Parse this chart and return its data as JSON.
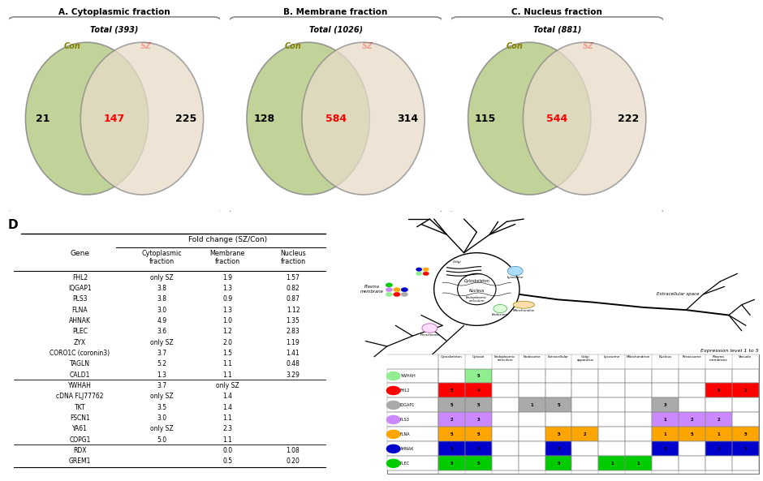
{
  "venn_A": {
    "title": "A. Cytoplasmic fraction",
    "total": "Total (393)",
    "left_label": "Con",
    "right_label": "SZ",
    "left_only": "21",
    "overlap": "147",
    "right_only": "225"
  },
  "venn_B": {
    "title": "B. Membrane fraction",
    "total": "Total (1026)",
    "left_label": "Con",
    "right_label": "SZ",
    "left_only": "128",
    "overlap": "584",
    "right_only": "314"
  },
  "venn_C": {
    "title": "C. Nucleus fraction",
    "total": "Total (881)",
    "left_label": "Con",
    "right_label": "SZ",
    "left_only": "115",
    "overlap": "544",
    "right_only": "222"
  },
  "table_genes": [
    {
      "gene": "FHL2",
      "cyto": "only SZ",
      "mem": "1.9",
      "nuc": "1.57"
    },
    {
      "gene": "IQGAP1",
      "cyto": "3.8",
      "mem": "1.3",
      "nuc": "0.82"
    },
    {
      "gene": "PLS3",
      "cyto": "3.8",
      "mem": "0.9",
      "nuc": "0.87"
    },
    {
      "gene": "FLNA",
      "cyto": "3.0",
      "mem": "1.3",
      "nuc": "1.12"
    },
    {
      "gene": "AHNAK",
      "cyto": "4.9",
      "mem": "1.0",
      "nuc": "1.35"
    },
    {
      "gene": "PLEC",
      "cyto": "3.6",
      "mem": "1.2",
      "nuc": "2.83"
    },
    {
      "gene": "ZYX",
      "cyto": "only SZ",
      "mem": "2.0",
      "nuc": "1.19"
    },
    {
      "gene": "CORO1C (coronin3)",
      "cyto": "3.7",
      "mem": "1.5",
      "nuc": "1.41"
    },
    {
      "gene": "TAGLN",
      "cyto": "5.2",
      "mem": "1.1",
      "nuc": "0.48"
    },
    {
      "gene": "CALD1",
      "cyto": "1.3",
      "mem": "1.1",
      "nuc": "3.29"
    },
    {
      "gene": "YWHAH",
      "cyto": "3.7",
      "mem": "only SZ",
      "nuc": ""
    },
    {
      "gene": "cDNA FLJ77762",
      "cyto": "only SZ",
      "mem": "1.4",
      "nuc": ""
    },
    {
      "gene": "TKT",
      "cyto": "3.5",
      "mem": "1.4",
      "nuc": ""
    },
    {
      "gene": "FSCN1",
      "cyto": "3.0",
      "mem": "1.1",
      "nuc": ""
    },
    {
      "gene": "YA61",
      "cyto": "only SZ",
      "mem": "2.3",
      "nuc": ""
    },
    {
      "gene": "COPG1",
      "cyto": "5.0",
      "mem": "1.1",
      "nuc": ""
    },
    {
      "gene": "RDX",
      "cyto": "",
      "mem": "0.0",
      "nuc": "1.08"
    },
    {
      "gene": "GREM1",
      "cyto": "",
      "mem": "0.5",
      "nuc": "0.20"
    }
  ],
  "expression_table": {
    "columns": [
      "Cytoskeleton",
      "Cytosol",
      "Endoplasmic\nreticulum",
      "Endosome",
      "Extracellular",
      "Golgi\napparatus",
      "Lysosome",
      "Mitochondrion",
      "Nucleus",
      "Peroxisome",
      "Plasma\nmembrane",
      "Vacuole"
    ],
    "rows": [
      {
        "gene": "YWHAH",
        "dot_color": "#90EE90",
        "vals": [
          "",
          "5",
          "",
          "",
          "",
          "",
          "",
          "",
          "",
          "",
          "",
          ""
        ]
      },
      {
        "gene": "FHL2",
        "dot_color": "#FF0000",
        "vals": [
          "5",
          "4",
          "",
          "",
          "",
          "",
          "",
          "",
          "",
          "",
          "5",
          "1"
        ]
      },
      {
        "gene": "IQGAP1",
        "dot_color": "#AAAAAA",
        "vals": [
          "5",
          "5",
          "",
          "1",
          "5",
          "",
          "",
          "",
          "3",
          "",
          "",
          ""
        ]
      },
      {
        "gene": "PLS3",
        "dot_color": "#CC88FF",
        "vals": [
          "2",
          "3",
          "",
          "",
          "",
          "",
          "",
          "",
          "1",
          "2",
          "2",
          ""
        ]
      },
      {
        "gene": "FLNA",
        "dot_color": "#FFA500",
        "vals": [
          "5",
          "5",
          "",
          "",
          "5",
          "2",
          "",
          "",
          "1",
          "5",
          "1",
          "5"
        ]
      },
      {
        "gene": "AHNAK",
        "dot_color": "#0000CD",
        "vals": [
          "5",
          "5",
          "",
          "",
          "5",
          "",
          "",
          "",
          "5",
          "",
          "3",
          "5"
        ]
      },
      {
        "gene": "PLEC",
        "dot_color": "#00CC00",
        "vals": [
          "5",
          "5",
          "",
          "",
          "5",
          "",
          "1",
          "1",
          "",
          "",
          "",
          ""
        ]
      }
    ]
  },
  "venn_left_color": "#B8CC88",
  "venn_right_color": "#E8DCC8"
}
